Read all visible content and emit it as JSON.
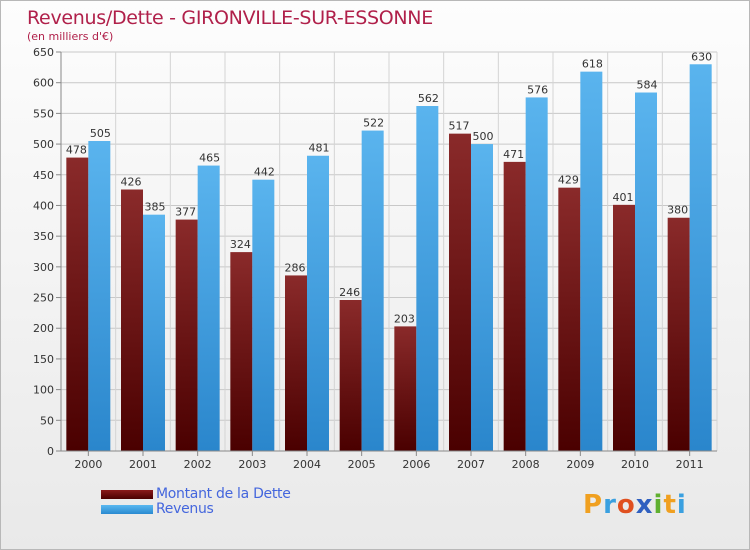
{
  "header": {
    "title": "Revenus/Dette - GIRONVILLE-SUR-ESSONNE",
    "subtitle": "(en milliers d'€)"
  },
  "legend": {
    "items": [
      {
        "label": "Montant de la Dette",
        "color": "#6b0f0f"
      },
      {
        "label": "Revenus",
        "color": "#3d9de0"
      }
    ]
  },
  "logo": {
    "letters": [
      "P",
      "r",
      "o",
      "x",
      "i",
      "t",
      "i"
    ],
    "colors": [
      "#f0a020",
      "#3aa0e0",
      "#e05020",
      "#3060c0",
      "#60b030",
      "#f0a020",
      "#3aa0e0"
    ]
  },
  "chart_data": {
    "type": "bar",
    "categories": [
      "2000",
      "2001",
      "2002",
      "2003",
      "2004",
      "2005",
      "2006",
      "2007",
      "2008",
      "2009",
      "2010",
      "2011"
    ],
    "series": [
      {
        "name": "Montant de la Dette",
        "values": [
          478,
          426,
          377,
          324,
          286,
          246,
          203,
          517,
          471,
          429,
          401,
          380
        ]
      },
      {
        "name": "Revenus",
        "values": [
          505,
          385,
          465,
          442,
          481,
          522,
          562,
          500,
          576,
          618,
          584,
          630
        ]
      }
    ],
    "ylim": [
      0,
      650
    ],
    "ytick_step": 50,
    "grid": true,
    "colors": {
      "debt_top": "#8a1a1a",
      "debt_bottom": "#4a0000",
      "rev_top": "#5ab8f0",
      "rev_bottom": "#2a8ad0"
    }
  }
}
